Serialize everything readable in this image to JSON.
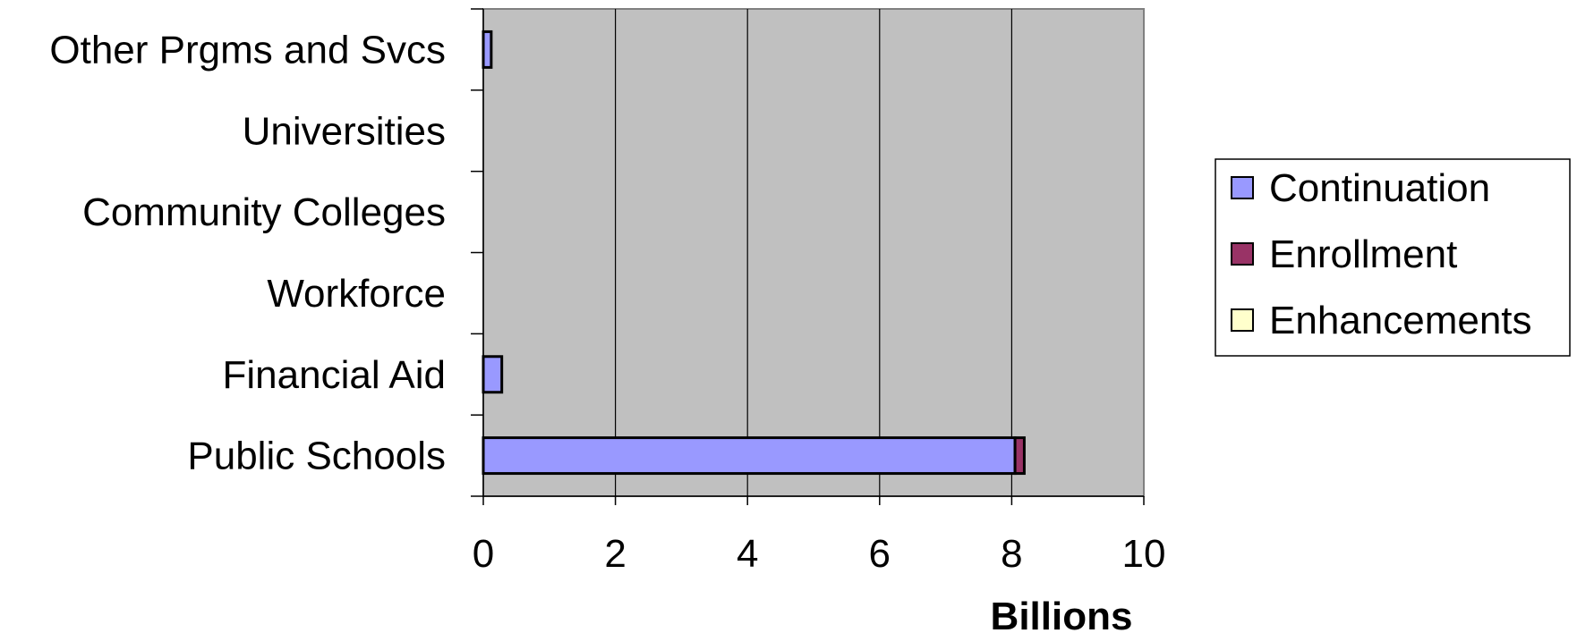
{
  "chart_data": {
    "type": "bar",
    "orientation": "horizontal",
    "stacked": true,
    "categories": [
      "Public Schools",
      "Financial Aid",
      "Workforce",
      "Community Colleges",
      "Universities",
      "Other Prgms and Svcs"
    ],
    "series": [
      {
        "name": "Continuation",
        "color": "#9999ff",
        "values": [
          8.05,
          0.28,
          0,
          0,
          0,
          0.12
        ]
      },
      {
        "name": "Enrollment",
        "color": "#993366",
        "values": [
          0.14,
          0,
          0,
          0,
          0,
          0
        ]
      },
      {
        "name": "Enhancements",
        "color": "#ffffcc",
        "values": [
          0,
          0,
          0,
          0,
          0,
          0
        ]
      }
    ],
    "xlabel": "Billions",
    "xlim": [
      0,
      10
    ],
    "xticks": [
      "0",
      "2",
      "4",
      "6",
      "8",
      "10"
    ],
    "grid": "vertical",
    "legend_position": "right",
    "plot_background": "#c0c0c0"
  }
}
